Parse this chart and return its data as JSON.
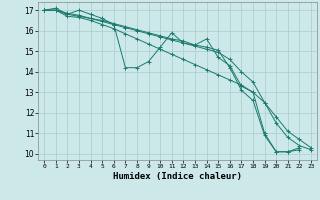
{
  "xlabel": "Humidex (Indice chaleur)",
  "xlim": [
    -0.5,
    23.5
  ],
  "ylim": [
    9.7,
    17.4
  ],
  "yticks": [
    10,
    11,
    12,
    13,
    14,
    15,
    16,
    17
  ],
  "xticks": [
    0,
    1,
    2,
    3,
    4,
    5,
    6,
    7,
    8,
    9,
    10,
    11,
    12,
    13,
    14,
    15,
    16,
    17,
    18,
    19,
    20,
    21,
    22,
    23
  ],
  "bg_color": "#cce8e8",
  "grid_color": "#aacccc",
  "line_color": "#1a7a6e",
  "series": [
    {
      "x": [
        0,
        1,
        2,
        3,
        4,
        5,
        6,
        7,
        8,
        9,
        10,
        11,
        12,
        13,
        14,
        15,
        16,
        17,
        18,
        19,
        20,
        21,
        22
      ],
      "y": [
        17.0,
        17.1,
        16.8,
        17.0,
        16.8,
        16.6,
        16.3,
        14.2,
        14.2,
        14.5,
        15.2,
        15.9,
        15.4,
        15.3,
        15.6,
        14.7,
        14.3,
        13.3,
        13.0,
        11.0,
        10.1,
        10.1,
        10.3
      ]
    },
    {
      "x": [
        0,
        1,
        2,
        3,
        4,
        5,
        6,
        7,
        8,
        9,
        10,
        11,
        12,
        13,
        14,
        15,
        16,
        17,
        18,
        19,
        20,
        21,
        22,
        23
      ],
      "y": [
        17.0,
        17.0,
        16.7,
        16.65,
        16.5,
        16.3,
        16.1,
        15.85,
        15.6,
        15.35,
        15.1,
        14.85,
        14.6,
        14.35,
        14.1,
        13.85,
        13.6,
        13.35,
        13.0,
        12.5,
        11.8,
        11.1,
        10.7,
        10.3
      ]
    },
    {
      "x": [
        0,
        1,
        2,
        3,
        4,
        5,
        6,
        7,
        8,
        9,
        10,
        11,
        12,
        13,
        14,
        15,
        16,
        17,
        18,
        19,
        20,
        21,
        22,
        23
      ],
      "y": [
        17.0,
        17.0,
        16.8,
        16.7,
        16.6,
        16.45,
        16.3,
        16.15,
        16.0,
        15.85,
        15.7,
        15.55,
        15.4,
        15.25,
        15.1,
        14.95,
        14.6,
        14.0,
        13.5,
        12.5,
        11.5,
        10.8,
        10.4,
        10.2
      ]
    },
    {
      "x": [
        0,
        1,
        2,
        3,
        4,
        5,
        6,
        7,
        8,
        9,
        10,
        11,
        12,
        13,
        14,
        15,
        16,
        17,
        18,
        19,
        20,
        21,
        22
      ],
      "y": [
        17.0,
        17.0,
        16.85,
        16.75,
        16.6,
        16.5,
        16.35,
        16.2,
        16.05,
        15.9,
        15.75,
        15.6,
        15.5,
        15.3,
        15.2,
        15.05,
        14.2,
        13.1,
        12.6,
        10.9,
        10.1,
        10.1,
        10.2
      ]
    }
  ]
}
